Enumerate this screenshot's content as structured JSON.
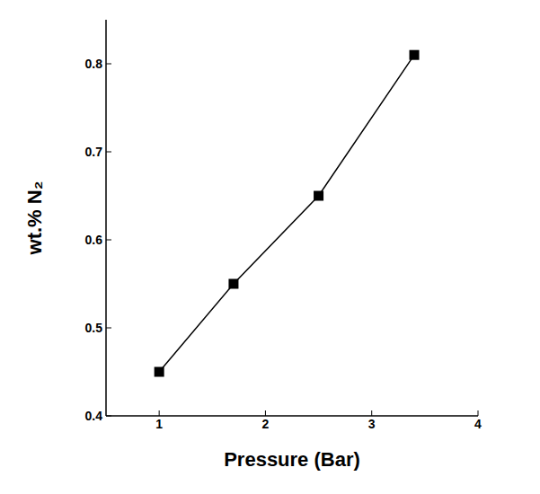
{
  "chart_data": {
    "type": "line",
    "x_label": "Pressure (Bar)",
    "y_label": "wt.% N₂",
    "x": [
      1,
      1.7,
      2.5,
      3.4
    ],
    "values": [
      0.45,
      0.55,
      0.65,
      0.81
    ],
    "color": "#000000",
    "marker": "square",
    "line_style": "solid",
    "xlim": [
      0.5,
      4
    ],
    "xticks": [
      1,
      2,
      3,
      4
    ],
    "ylim": [
      0.4,
      0.85
    ],
    "yticks": [
      0.4,
      0.5,
      0.6,
      0.7,
      0.8
    ],
    "grid": false
  }
}
